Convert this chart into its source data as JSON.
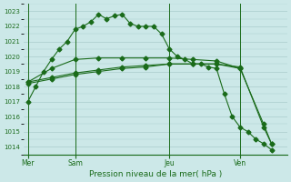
{
  "title": "Pression niveau de la mer( hPa )",
  "bg_color": "#cce8e8",
  "grid_color": "#aacccc",
  "line_color": "#1a6b1a",
  "ylim": [
    1013.5,
    1023.5
  ],
  "yticks": [
    1014,
    1015,
    1016,
    1017,
    1018,
    1019,
    1020,
    1021,
    1022,
    1023
  ],
  "day_labels": [
    "Mer",
    "Sam",
    "Jeu",
    "Ven"
  ],
  "day_positions": [
    0,
    6,
    18,
    27
  ],
  "xlim": [
    -0.5,
    33
  ],
  "series1_x": [
    0,
    1,
    2,
    3,
    4,
    5,
    6,
    7,
    8,
    9,
    10,
    11,
    12,
    13,
    14,
    15,
    16,
    17,
    18,
    19,
    20,
    21,
    22,
    23,
    24,
    25,
    26,
    27,
    28,
    29,
    30,
    31
  ],
  "series1_y": [
    1017.0,
    1018.0,
    1019.0,
    1019.8,
    1020.5,
    1021.0,
    1021.8,
    1022.0,
    1022.3,
    1022.8,
    1022.5,
    1022.7,
    1022.8,
    1022.2,
    1022.0,
    1022.0,
    1022.0,
    1021.5,
    1020.5,
    1020.0,
    1019.8,
    1019.5,
    1019.5,
    1019.3,
    1019.2,
    1017.5,
    1016.0,
    1015.3,
    1015.0,
    1014.5,
    1014.2,
    1013.8
  ],
  "series2_x": [
    0,
    3,
    6,
    9,
    12,
    15,
    18,
    21,
    24,
    27,
    30,
    31
  ],
  "series2_y": [
    1018.2,
    1018.5,
    1018.8,
    1019.0,
    1019.2,
    1019.3,
    1019.5,
    1019.5,
    1019.5,
    1019.2,
    1015.5,
    1014.2
  ],
  "series3_x": [
    0,
    3,
    6,
    9,
    12,
    15,
    18,
    21,
    24,
    27,
    30,
    31
  ],
  "series3_y": [
    1018.3,
    1018.6,
    1018.9,
    1019.1,
    1019.3,
    1019.4,
    1019.5,
    1019.5,
    1019.5,
    1019.3,
    1015.3,
    1014.2
  ],
  "series4_x": [
    0,
    3,
    6,
    9,
    12,
    15,
    18,
    21,
    24,
    27
  ],
  "series4_y": [
    1018.3,
    1019.2,
    1019.8,
    1019.9,
    1019.9,
    1019.9,
    1019.9,
    1019.8,
    1019.7,
    1019.2
  ]
}
